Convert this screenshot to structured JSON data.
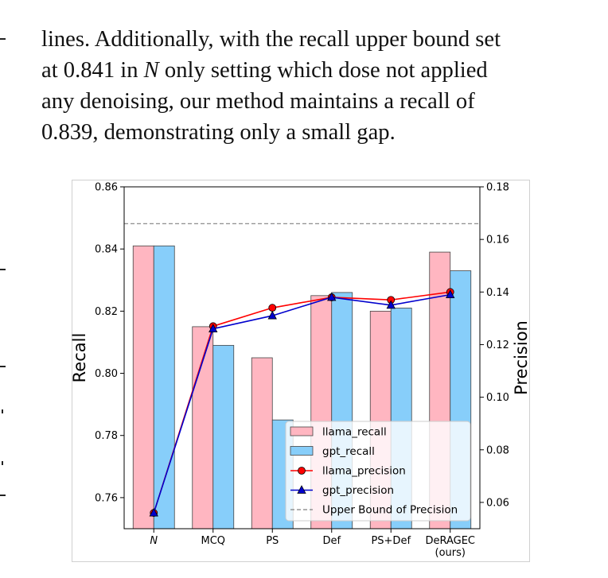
{
  "paragraph": {
    "lines": [
      "lines. Additionally, with the recall upper bound set",
      "at 0.841 in",
      "N",
      "only setting which dose not applied",
      "any denoising, our method maintains a recall of",
      "0.839, demonstrating only a small gap."
    ]
  },
  "chart_data": {
    "type": "bar",
    "categories": [
      "N",
      "MCQ",
      "PS",
      "Def",
      "PS+Def",
      "DeRAGEC\n(ours)"
    ],
    "category_labels": [
      "N",
      "MCQ",
      "PS",
      "Def",
      "PS+Def",
      "DeRAGEC",
      "(ours)"
    ],
    "series": [
      {
        "name": "llama_recall",
        "axis": "left",
        "kind": "bar",
        "color": "#ffb6c1",
        "values": [
          0.841,
          0.815,
          0.805,
          0.825,
          0.82,
          0.839
        ]
      },
      {
        "name": "gpt_recall",
        "axis": "left",
        "kind": "bar",
        "color": "#87cefa",
        "values": [
          0.841,
          0.809,
          0.785,
          0.826,
          0.821,
          0.833
        ]
      },
      {
        "name": "llama_precision",
        "axis": "right",
        "kind": "line",
        "color": "#ff0000",
        "marker": "circle",
        "values": [
          0.056,
          0.127,
          0.134,
          0.138,
          0.137,
          0.14
        ]
      },
      {
        "name": "gpt_precision",
        "axis": "right",
        "kind": "line",
        "color": "#0000cd",
        "marker": "triangle",
        "values": [
          0.056,
          0.126,
          0.131,
          0.138,
          0.135,
          0.139
        ]
      }
    ],
    "upper_bound": {
      "name": "Upper Bound of Precision",
      "axis": "right",
      "value": 0.166,
      "color": "#808080",
      "style": "dashed"
    },
    "ylabel": "Recall",
    "y2label": "Precision",
    "ylim": [
      0.75,
      0.86
    ],
    "y2lim": [
      0.05,
      0.18
    ],
    "yticks": [
      "0.76",
      "0.78",
      "0.80",
      "0.82",
      "0.84",
      "0.86"
    ],
    "y2ticks": [
      "0.06",
      "0.08",
      "0.10",
      "0.12",
      "0.14",
      "0.16",
      "0.18"
    ],
    "legend_position": "lower-right",
    "grid": false
  }
}
